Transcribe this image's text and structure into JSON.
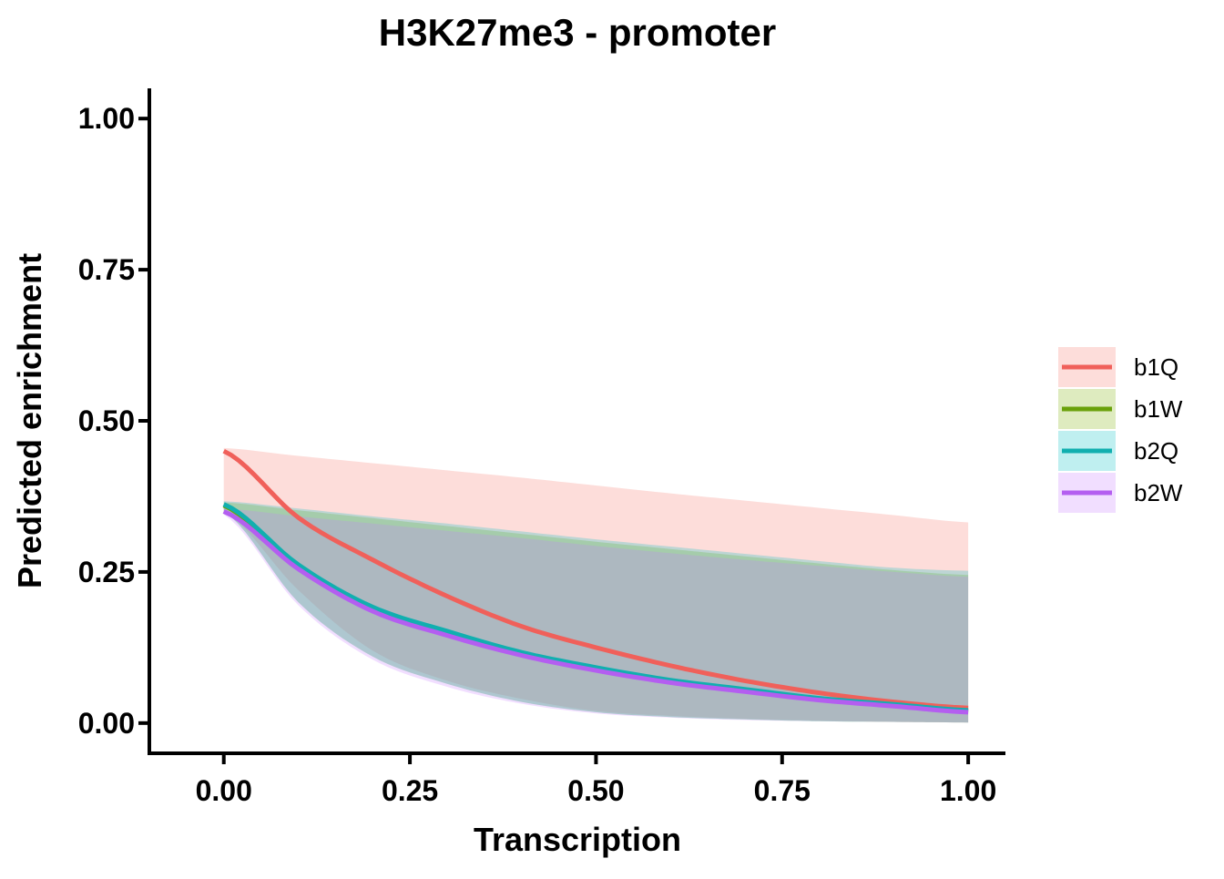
{
  "chart_data": {
    "type": "line",
    "title": "H3K27me3 - promoter",
    "xlabel": "Transcription",
    "ylabel": "Predicted enrichment",
    "xlim": [
      -0.1,
      1.05
    ],
    "ylim": [
      -0.05,
      1.05
    ],
    "x_ticks": [
      0.0,
      0.25,
      0.5,
      0.75,
      1.0
    ],
    "x_tick_labels": [
      "0.00",
      "0.25",
      "0.50",
      "0.75",
      "1.00"
    ],
    "y_ticks": [
      0.0,
      0.25,
      0.5,
      0.75,
      1.0
    ],
    "y_tick_labels": [
      "0.00",
      "0.25",
      "0.50",
      "0.75",
      "1.00"
    ],
    "grid": false,
    "legend_position": "right",
    "x": [
      0.0,
      0.1,
      0.2,
      0.3,
      0.4,
      0.5,
      0.6,
      0.7,
      0.8,
      0.9,
      1.0
    ],
    "series": [
      {
        "name": "b1Q",
        "color": "#F0605A",
        "fill": "#F8766D",
        "values": [
          0.45,
          0.34,
          0.27,
          0.21,
          0.16,
          0.125,
          0.095,
          0.07,
          0.05,
          0.035,
          0.025
        ],
        "lower": [
          0.35,
          0.22,
          0.12,
          0.07,
          0.04,
          0.02,
          0.012,
          0.007,
          0.004,
          0.002,
          0.001
        ],
        "upper": [
          0.455,
          0.442,
          0.43,
          0.418,
          0.406,
          0.393,
          0.38,
          0.368,
          0.356,
          0.344,
          0.332
        ]
      },
      {
        "name": "b1W",
        "color": "#6AA10B",
        "fill": "#7CAE00",
        "values": [
          0.36,
          0.26,
          0.19,
          0.15,
          0.115,
          0.09,
          0.07,
          0.055,
          0.04,
          0.03,
          0.02
        ],
        "lower": [
          0.35,
          0.2,
          0.11,
          0.065,
          0.035,
          0.018,
          0.01,
          0.006,
          0.003,
          0.002,
          0.001
        ],
        "upper": [
          0.365,
          0.352,
          0.339,
          0.326,
          0.313,
          0.3,
          0.288,
          0.276,
          0.264,
          0.253,
          0.245
        ]
      },
      {
        "name": "b2Q",
        "color": "#11AFAF",
        "fill": "#00BFC4",
        "values": [
          0.362,
          0.262,
          0.192,
          0.152,
          0.117,
          0.092,
          0.071,
          0.056,
          0.041,
          0.031,
          0.021
        ],
        "lower": [
          0.35,
          0.2,
          0.11,
          0.065,
          0.035,
          0.018,
          0.01,
          0.006,
          0.003,
          0.002,
          0.001
        ],
        "upper": [
          0.367,
          0.355,
          0.342,
          0.33,
          0.317,
          0.304,
          0.292,
          0.28,
          0.268,
          0.257,
          0.252
        ]
      },
      {
        "name": "b2W",
        "color": "#B45EF0",
        "fill": "#C77CFF",
        "values": [
          0.35,
          0.255,
          0.185,
          0.145,
          0.112,
          0.087,
          0.067,
          0.052,
          0.038,
          0.028,
          0.018
        ],
        "lower": [
          0.345,
          0.195,
          0.105,
          0.06,
          0.032,
          0.016,
          0.009,
          0.005,
          0.003,
          0.002,
          0.001
        ],
        "upper": [
          0.355,
          0.342,
          0.33,
          0.318,
          0.306,
          0.293,
          0.281,
          0.27,
          0.26,
          0.25,
          0.242
        ]
      }
    ]
  }
}
